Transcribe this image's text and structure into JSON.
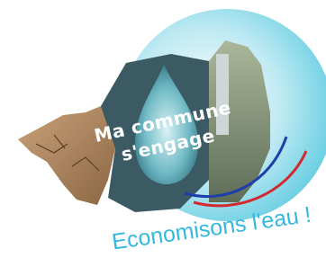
{
  "logo": {
    "headline": [
      "Ma commune",
      "s'engage"
    ],
    "slogan": "Economisons l'eau !"
  }
}
